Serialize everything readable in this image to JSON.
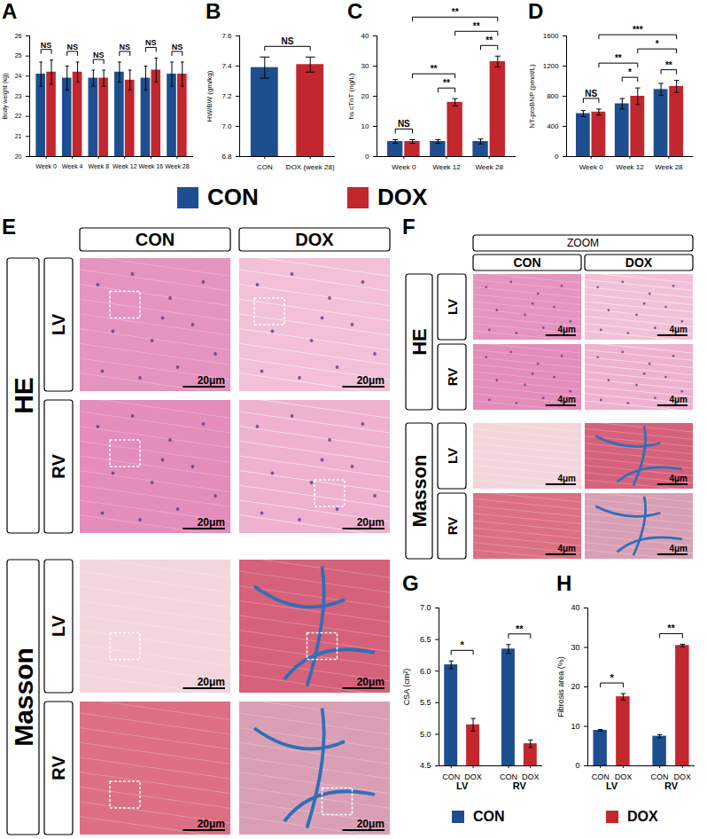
{
  "chart_data": [
    {
      "panel": "A",
      "type": "bar",
      "y_label": "Body weight (kg)",
      "categories": [
        "Week 0",
        "Week 4",
        "Week 8",
        "Week 12",
        "Week 16",
        "Week 28"
      ],
      "series": [
        {
          "name": "CON",
          "color": "#1d4e8f",
          "values": [
            24.1,
            23.9,
            23.9,
            24.2,
            23.9,
            24.1
          ],
          "errors": [
            0.6,
            0.6,
            0.4,
            0.5,
            0.6,
            0.6
          ]
        },
        {
          "name": "DOX",
          "color": "#c1272d",
          "values": [
            24.2,
            24.2,
            23.9,
            23.8,
            24.3,
            24.1
          ],
          "errors": [
            0.6,
            0.5,
            0.4,
            0.5,
            0.6,
            0.6
          ]
        }
      ],
      "ylim": [
        20,
        26
      ],
      "yticks": [
        20,
        21,
        22,
        23,
        24,
        25,
        26
      ],
      "comparisons": [
        {
          "from": {
            "category": "Week 0",
            "series": "CON"
          },
          "to": {
            "category": "Week 0",
            "series": "DOX"
          },
          "label": "NS"
        },
        {
          "from": {
            "category": "Week 4",
            "series": "CON"
          },
          "to": {
            "category": "Week 4",
            "series": "DOX"
          },
          "label": "NS"
        },
        {
          "from": {
            "category": "Week 8",
            "series": "CON"
          },
          "to": {
            "category": "Week 8",
            "series": "DOX"
          },
          "label": "NS"
        },
        {
          "from": {
            "category": "Week 12",
            "series": "CON"
          },
          "to": {
            "category": "Week 12",
            "series": "DOX"
          },
          "label": "NS"
        },
        {
          "from": {
            "category": "Week 16",
            "series": "CON"
          },
          "to": {
            "category": "Week 16",
            "series": "DOX"
          },
          "label": "NS"
        },
        {
          "from": {
            "category": "Week 28",
            "series": "CON"
          },
          "to": {
            "category": "Week 28",
            "series": "DOX"
          },
          "label": "NS"
        }
      ]
    },
    {
      "panel": "B",
      "type": "bar",
      "y_label": "HW/BW (gm/kg)",
      "categories": [
        "CON",
        "DOX (week 28)"
      ],
      "values": [
        7.39,
        7.41
      ],
      "errors": [
        0.07,
        0.05
      ],
      "colors": [
        "#1d4e8f",
        "#c1272d"
      ],
      "ylim": [
        6.8,
        7.6
      ],
      "yticks": [
        6.8,
        {
          "value": 7,
          "label": "7.0"
        },
        7.2,
        7.4,
        7.6
      ],
      "comparisons": [
        {
          "from": {
            "category": "CON"
          },
          "to": {
            "category": "DOX (week 28)"
          },
          "label": "NS"
        }
      ]
    },
    {
      "panel": "C",
      "type": "bar",
      "y_label": "hs cTnT (ng/L)",
      "categories": [
        "Week 0",
        "Week 12",
        "Week 28"
      ],
      "series": [
        {
          "name": "CON",
          "color": "#1d4e8f",
          "values": [
            5,
            5,
            5
          ],
          "errors": [
            0.6,
            0.6,
            0.8
          ]
        },
        {
          "name": "DOX",
          "color": "#c1272d",
          "values": [
            5,
            18,
            31.5
          ],
          "errors": [
            0.6,
            1.2,
            1.8
          ]
        }
      ],
      "ylim": [
        0,
        40
      ],
      "yticks": [
        0,
        10,
        20,
        30,
        40
      ],
      "comparisons": [
        {
          "from": {
            "category": "Week 0",
            "series": "CON"
          },
          "to": {
            "category": "Week 0",
            "series": "DOX"
          },
          "label": "NS"
        },
        {
          "from": {
            "category": "Week 12",
            "series": "CON"
          },
          "to": {
            "category": "Week 12",
            "series": "DOX"
          },
          "label": "**"
        },
        {
          "from": {
            "category": "Week 28",
            "series": "CON"
          },
          "to": {
            "category": "Week 28",
            "series": "DOX"
          },
          "label": "**"
        },
        {
          "from": {
            "category": "Week 0",
            "series": "DOX"
          },
          "to": {
            "category": "Week 12",
            "series": "DOX"
          },
          "label": "**"
        },
        {
          "from": {
            "category": "Week 12",
            "series": "DOX"
          },
          "to": {
            "category": "Week 28",
            "series": "DOX"
          },
          "label": "**"
        },
        {
          "from": {
            "category": "Week 0",
            "series": "DOX"
          },
          "to": {
            "category": "Week 28",
            "series": "DOX"
          },
          "label": "**"
        }
      ]
    },
    {
      "panel": "D",
      "type": "bar",
      "y_label": "NT-proBNP (pmol/L)",
      "categories": [
        "Week 0",
        "Week 12",
        "Week 28"
      ],
      "series": [
        {
          "name": "CON",
          "color": "#1d4e8f",
          "values": [
            570,
            700,
            890
          ],
          "errors": [
            40,
            70,
            80
          ]
        },
        {
          "name": "DOX",
          "color": "#c1272d",
          "values": [
            590,
            800,
            930
          ],
          "errors": [
            40,
            110,
            80
          ]
        }
      ],
      "ylim": [
        0,
        1600
      ],
      "yticks": [
        0,
        400,
        800,
        1200,
        1600
      ],
      "comparisons": [
        {
          "from": {
            "category": "Week 0",
            "series": "CON"
          },
          "to": {
            "category": "Week 0",
            "series": "DOX"
          },
          "label": "NS"
        },
        {
          "from": {
            "category": "Week 12",
            "series": "CON"
          },
          "to": {
            "category": "Week 12",
            "series": "DOX"
          },
          "label": "*"
        },
        {
          "from": {
            "category": "Week 28",
            "series": "CON"
          },
          "to": {
            "category": "Week 28",
            "series": "DOX"
          },
          "label": "**"
        },
        {
          "from": {
            "category": "Week 0",
            "series": "DOX"
          },
          "to": {
            "category": "Week 12",
            "series": "DOX"
          },
          "label": "**"
        },
        {
          "from": {
            "category": "Week 12",
            "series": "DOX"
          },
          "to": {
            "category": "Week 28",
            "series": "DOX"
          },
          "label": "*"
        },
        {
          "from": {
            "category": "Week 0",
            "series": "DOX"
          },
          "to": {
            "category": "Week 28",
            "series": "DOX"
          },
          "label": "***"
        }
      ]
    },
    {
      "panel": "G",
      "type": "bar",
      "y_label": "CSA (cm²)",
      "groups": [
        "LV",
        "LV",
        "RV",
        "RV"
      ],
      "categories": [
        "CON",
        "DOX",
        "CON",
        "DOX"
      ],
      "values": [
        6.1,
        5.15,
        6.35,
        4.85
      ],
      "errors": [
        0.06,
        0.1,
        0.07,
        0.06
      ],
      "colors": [
        "#1d4e8f",
        "#c1272d",
        "#1d4e8f",
        "#c1272d"
      ],
      "ylim": [
        4.5,
        7
      ],
      "yticks": [
        4.5,
        {
          "value": 5,
          "label": "5.0"
        },
        5.5,
        {
          "value": 6,
          "label": "6.0"
        },
        6.5,
        {
          "value": 7,
          "label": "7.0"
        }
      ],
      "comparisons": [
        {
          "from": {
            "group": "LV",
            "category": "CON"
          },
          "to": {
            "group": "LV",
            "category": "DOX"
          },
          "label": "*"
        },
        {
          "from": {
            "group": "RV",
            "category": "CON"
          },
          "to": {
            "group": "RV",
            "category": "DOX"
          },
          "label": "**"
        }
      ]
    },
    {
      "panel": "H",
      "type": "bar",
      "y_label": "Fibrosis area (%)",
      "groups": [
        "LV",
        "LV",
        "RV",
        "RV"
      ],
      "categories": [
        "CON",
        "DOX",
        "CON",
        "DOX"
      ],
      "values": [
        9,
        17.5,
        7.5,
        30.5
      ],
      "errors": [
        0.2,
        0.8,
        0.4,
        0.3
      ],
      "colors": [
        "#1d4e8f",
        "#c1272d",
        "#1d4e8f",
        "#c1272d"
      ],
      "ylim": [
        0,
        40
      ],
      "yticks": [
        0,
        10,
        20,
        30,
        40
      ],
      "comparisons": [
        {
          "from": {
            "group": "LV",
            "category": "CON"
          },
          "to": {
            "group": "LV",
            "category": "DOX"
          },
          "label": "*"
        },
        {
          "from": {
            "group": "RV",
            "category": "CON"
          },
          "to": {
            "group": "RV",
            "category": "DOX"
          },
          "label": "**"
        }
      ]
    }
  ],
  "legend": [
    {
      "name": "CON",
      "color": "#1d4e8f"
    },
    {
      "name": "DOX",
      "color": "#c1272d"
    }
  ],
  "histology": [
    {
      "panel": "E",
      "columns": [
        "CON",
        "DOX"
      ],
      "stains": [
        {
          "name": "HE",
          "rows": [
            "LV",
            "RV"
          ]
        },
        {
          "name": "Masson",
          "rows": [
            "LV",
            "RV"
          ]
        }
      ],
      "scale_bar": "20μm"
    },
    {
      "panel": "F",
      "header": "ZOOM",
      "columns": [
        "CON",
        "DOX"
      ],
      "stains": [
        {
          "name": "HE",
          "rows": [
            "LV",
            "RV"
          ]
        },
        {
          "name": "Masson",
          "rows": [
            "LV",
            "RV"
          ]
        }
      ],
      "scale_bar": "4μm"
    }
  ]
}
